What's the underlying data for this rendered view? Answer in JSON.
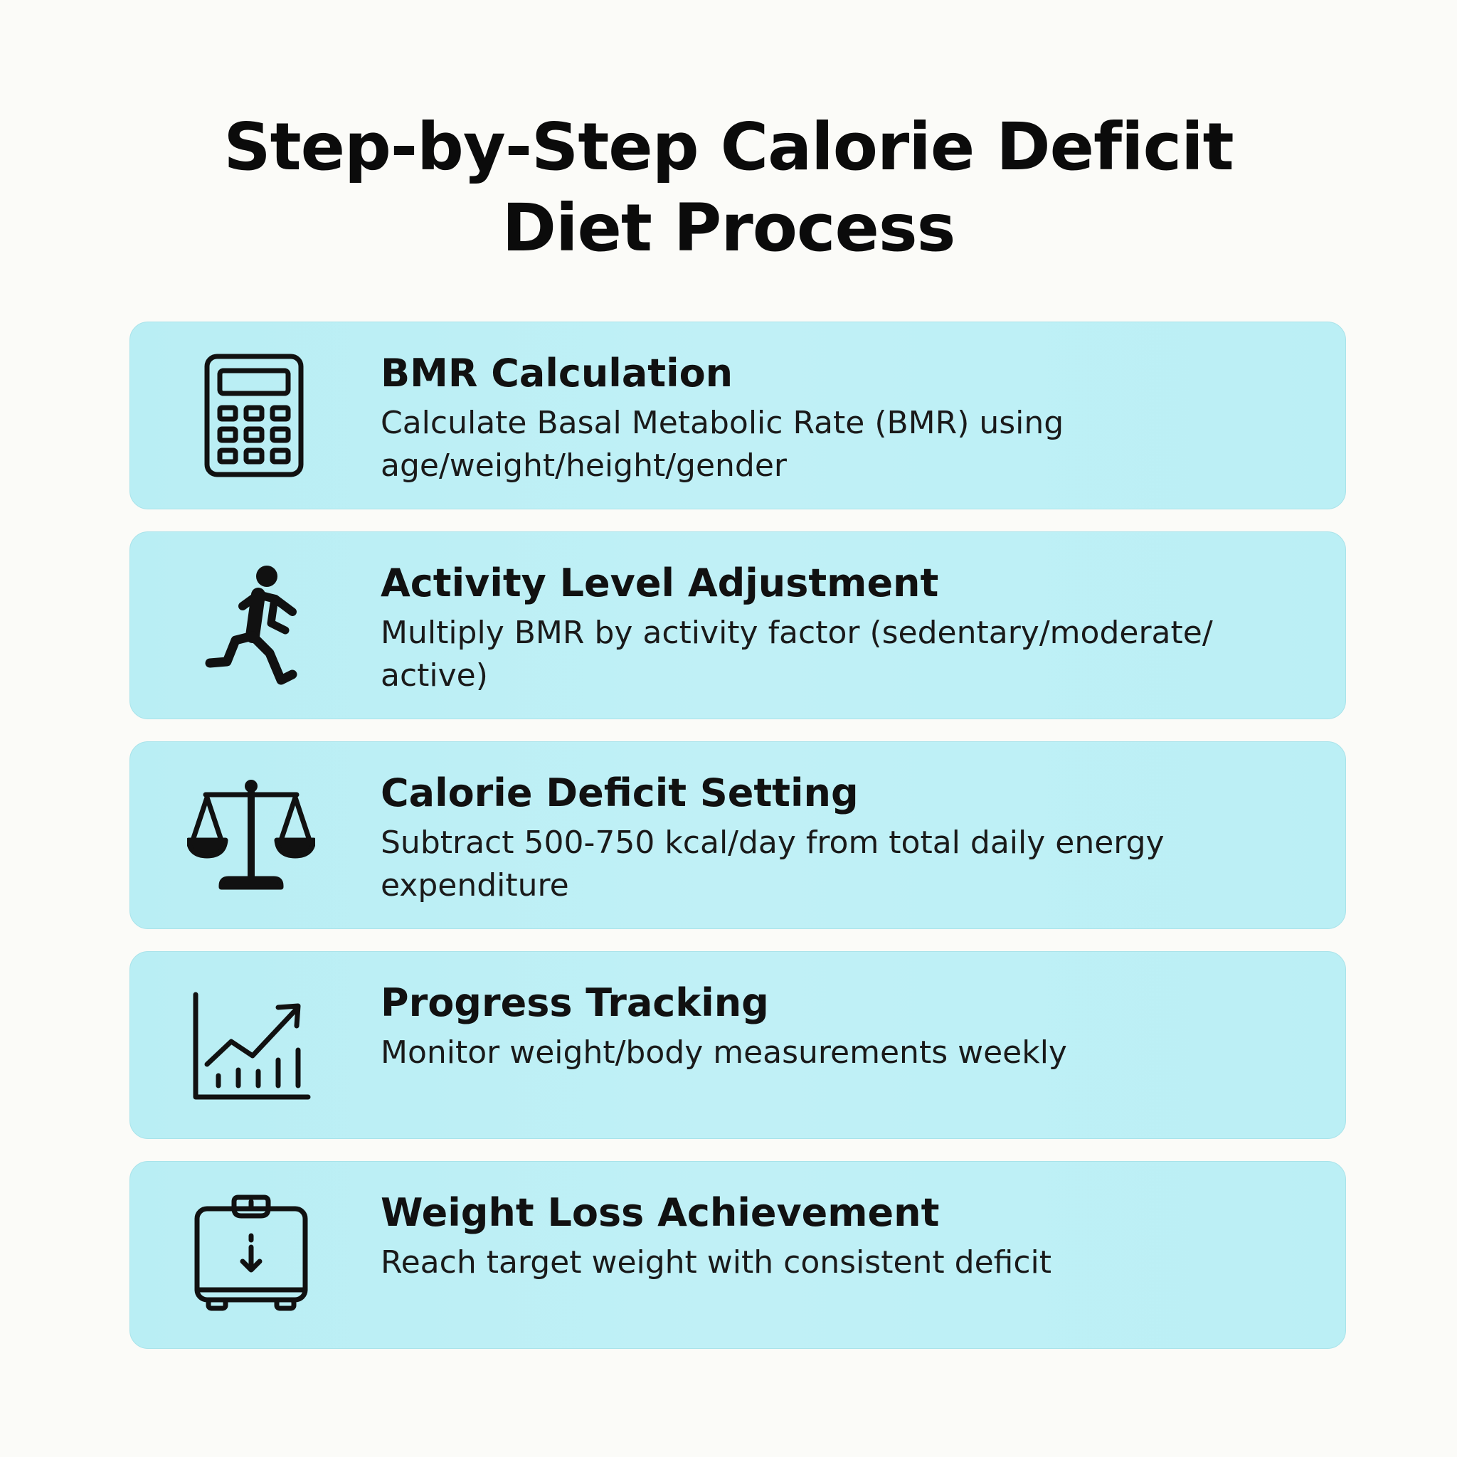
{
  "title": {
    "line1": "Step-by-Step Calorie Deficit",
    "line2": "Diet Process"
  },
  "steps": [
    {
      "icon": "calculator-icon",
      "title": "BMR Calculation",
      "description": "Calculate Basal Metabolic Rate (BMR) using age/weight/height/gender"
    },
    {
      "icon": "running-person-icon",
      "title": "Activity Level Adjustment",
      "description": "Multiply BMR by activity factor (sedentary/moderate/ active)"
    },
    {
      "icon": "balance-scale-icon",
      "title": "Calorie Deficit Setting",
      "description": "Subtract 500-750 kcal/day from total daily energy expenditure"
    },
    {
      "icon": "trend-chart-icon",
      "title": "Progress Tracking",
      "description": "Monitor weight/body measurements weekly"
    },
    {
      "icon": "bathroom-scale-icon",
      "title": "Weight Loss Achievement",
      "description": "Reach target weight with consistent deficit"
    }
  ],
  "colors": {
    "background": "#fbfbf8",
    "card": "#bdeff5",
    "text": "#111111"
  }
}
